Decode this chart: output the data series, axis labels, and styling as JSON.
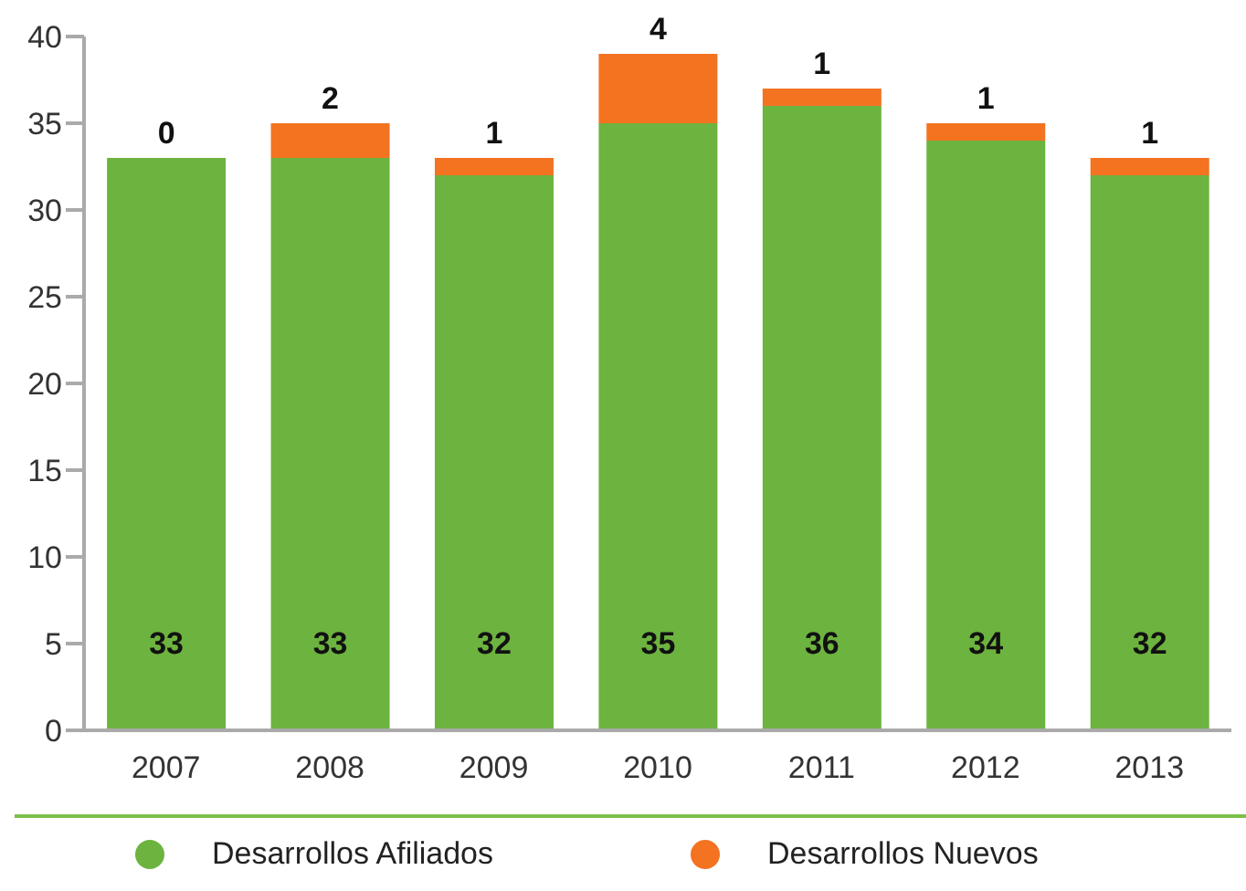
{
  "chart_data": {
    "type": "bar",
    "stacked": true,
    "categories": [
      "2007",
      "2008",
      "2009",
      "2010",
      "2011",
      "2012",
      "2013"
    ],
    "series": [
      {
        "name": "Desarrollos Afiliados",
        "color": "#6db33f",
        "values": [
          33,
          33,
          32,
          35,
          36,
          34,
          32
        ]
      },
      {
        "name": "Desarrollos Nuevos",
        "color": "#f37321",
        "values": [
          0,
          2,
          1,
          4,
          1,
          1,
          1
        ]
      }
    ],
    "ylim": [
      0,
      40
    ],
    "yticks": [
      0,
      5,
      10,
      15,
      20,
      25,
      30,
      35,
      40
    ],
    "grid": false,
    "legend": "bottom",
    "data_labels": true
  }
}
